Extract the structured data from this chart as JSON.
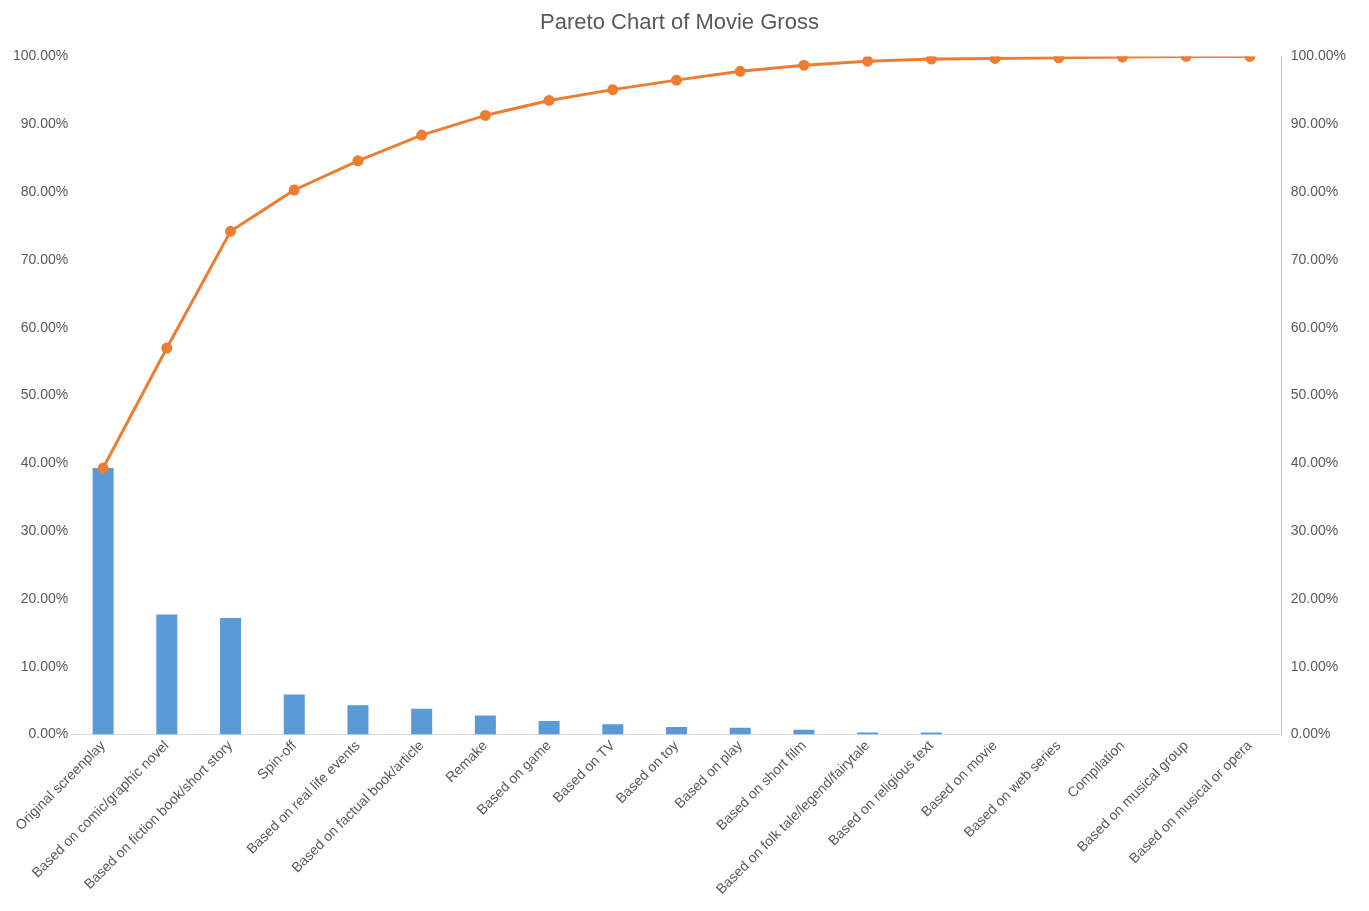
{
  "chart_data": {
    "type": "bar",
    "title": "Pareto Chart of Movie Gross",
    "categories": [
      "Original screenplay",
      "Based on comic/graphic novel",
      "Based on fiction book/short story",
      "Spin-off",
      "Based on real life events",
      "Based on factual book/article",
      "Remake",
      "Based on game",
      "Based on TV",
      "Based on toy",
      "Based on play",
      "Based on short film",
      "Based on folk tale/legend/fairytale",
      "Based on religious text",
      "Based on movie",
      "Based on web series",
      "Compilation",
      "Based on musical group",
      "Based on musical or opera"
    ],
    "series": [
      {
        "color": "#5b9bd5",
        "values": [
          39.3,
          17.7,
          17.2,
          5.9,
          4.3,
          3.8,
          2.8,
          2.0,
          1.5,
          1.1,
          1.0,
          0.7,
          0.3,
          0.3,
          null,
          null,
          null,
          null,
          null
        ]
      },
      {
        "type": "line",
        "axis": "y2",
        "color": "#ed7d31",
        "values": [
          39.3,
          57.0,
          74.2,
          80.3,
          84.6,
          88.4,
          91.3,
          93.5,
          95.1,
          96.5,
          97.8,
          98.7,
          99.3,
          99.6,
          99.7,
          99.8,
          99.9,
          100,
          100
        ]
      }
    ],
    "ylim": [
      0,
      100
    ],
    "yticks": [
      {
        "value": 0,
        "label": "0.00%"
      },
      {
        "value": 10,
        "label": "10.00%"
      },
      {
        "value": 20,
        "label": "20.00%"
      },
      {
        "value": 30,
        "label": "30.00%"
      },
      {
        "value": 40,
        "label": "40.00%"
      },
      {
        "value": 50,
        "label": "50.00%"
      },
      {
        "value": 60,
        "label": "60.00%"
      },
      {
        "value": 70,
        "label": "70.00%"
      },
      {
        "value": 80,
        "label": "80.00%"
      },
      {
        "value": 90,
        "label": "90.00%"
      },
      {
        "value": 100,
        "label": "100.00%"
      }
    ],
    "y2lim": [
      0,
      100
    ],
    "y2ticks": [
      {
        "value": 0,
        "label": "0.00%"
      },
      {
        "value": 10,
        "label": "10.00%"
      },
      {
        "value": 20,
        "label": "20.00%"
      },
      {
        "value": 30,
        "label": "30.00%"
      },
      {
        "value": 40,
        "label": "40.00%"
      },
      {
        "value": 50,
        "label": "50.00%"
      },
      {
        "value": 60,
        "label": "60.00%"
      },
      {
        "value": 70,
        "label": "70.00%"
      },
      {
        "value": 80,
        "label": "80.00%"
      },
      {
        "value": 90,
        "label": "90.00%"
      },
      {
        "value": 100,
        "label": "100.00%"
      }
    ],
    "marker": "circle",
    "legend": false,
    "grid": false
  }
}
